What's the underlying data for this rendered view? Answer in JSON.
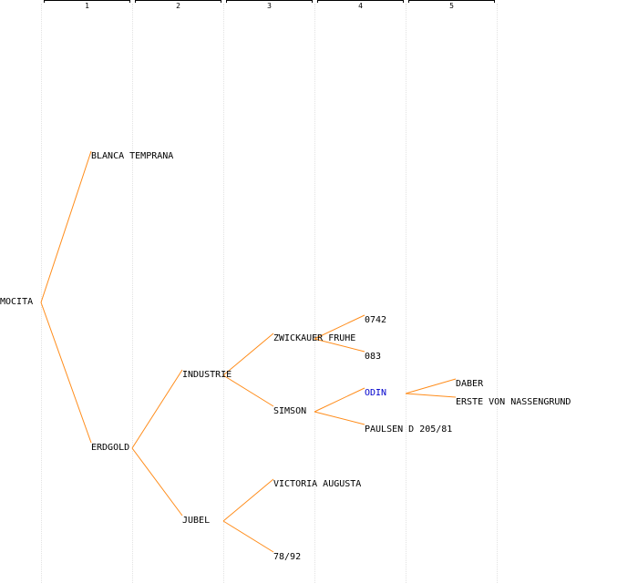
{
  "generations": [
    "1",
    "2",
    "3",
    "4",
    "5"
  ],
  "tree": {
    "name": "MOCITA",
    "children": [
      {
        "name": "BLANCA TEMPRANA"
      },
      {
        "name": "ERDGOLD",
        "children": [
          {
            "name": "INDUSTRIE",
            "children": [
              {
                "name": "ZWICKAUER FRUHE",
                "children": [
                  {
                    "name": "0742"
                  },
                  {
                    "name": "083"
                  }
                ]
              },
              {
                "name": "SIMSON",
                "children": [
                  {
                    "name": "ODIN",
                    "highlight": true,
                    "children": [
                      {
                        "name": "DABER"
                      },
                      {
                        "name": "ERSTE VON NASSENGRUND"
                      }
                    ]
                  },
                  {
                    "name": "PAULSEN D 205/81"
                  }
                ]
              }
            ]
          },
          {
            "name": "JUBEL",
            "children": [
              {
                "name": "VICTORIA AUGUSTA"
              },
              {
                "name": "78/92"
              }
            ]
          }
        ]
      }
    ]
  },
  "colors": {
    "link": "#ff8c1a",
    "text": "#000000",
    "highlight": "#0000cc",
    "guide": "#e2e2e2"
  }
}
